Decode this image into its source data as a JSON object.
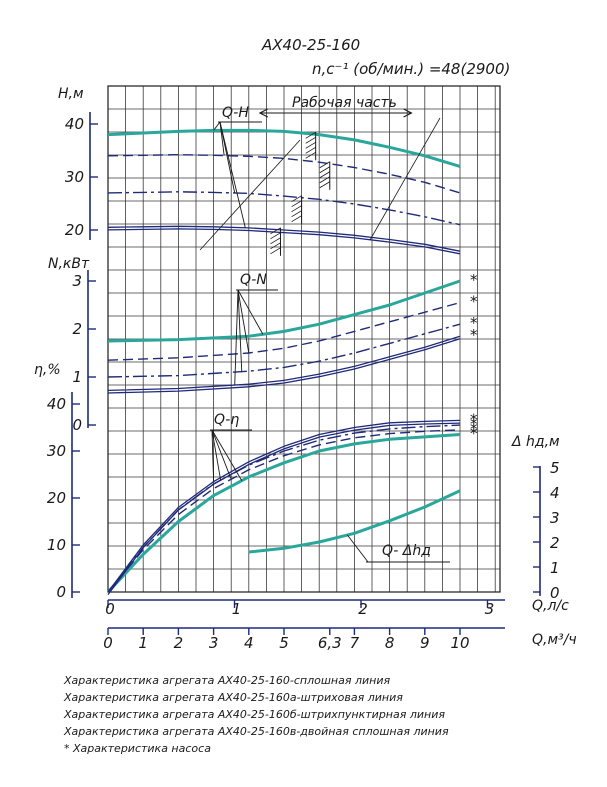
{
  "chart_data": {
    "type": "line",
    "title": "АХ40-25-160",
    "subtitle": "n,c⁻¹ (об/мин.) =48(2900)",
    "colors": {
      "solid": "#2aa79b",
      "others": "#1f2a7a",
      "ink": "#1a1a1a"
    },
    "grid": true,
    "x_axis": {
      "flow_ls": {
        "label": "Q,л/с",
        "ticks": [
          "0",
          "1",
          "2",
          "3"
        ],
        "range": [
          0,
          2.92
        ]
      },
      "flow_m3h": {
        "label": "Q,м³/ч",
        "ticks": [
          "0",
          "1",
          "2",
          "3",
          "4",
          "5",
          "6,3",
          "7",
          "8",
          "9",
          "10"
        ],
        "range": [
          0,
          10.5
        ]
      }
    },
    "panels": {
      "head": {
        "ylabel": "Н,м",
        "yticks": [
          "20",
          "30",
          "40"
        ],
        "ylim": [
          18,
          46
        ],
        "curve_label": "Q-H",
        "work_zone_label": "Рабочая часть",
        "work_zone": [
          1.2,
          2.4
        ],
        "series": [
          {
            "style": "solid",
            "x": [
              0,
              1,
              2,
              3,
              4,
              5,
              6,
              7,
              8,
              9,
              10
            ],
            "y": [
              38,
              38.3,
              38.6,
              38.8,
              38.8,
              38.6,
              38,
              37,
              35.6,
              34,
              32
            ]
          },
          {
            "style": "dash",
            "x": [
              0,
              1,
              2,
              3,
              4,
              5,
              6,
              7,
              8,
              9,
              10
            ],
            "y": [
              34,
              34.1,
              34.2,
              34.1,
              33.9,
              33.5,
              32.8,
              31.8,
              30.5,
              29,
              27
            ]
          },
          {
            "style": "dashdot",
            "x": [
              0,
              1,
              2,
              3,
              4,
              5,
              6,
              7,
              8,
              9,
              10
            ],
            "y": [
              27,
              27.1,
              27.2,
              27.1,
              26.9,
              26.4,
              25.8,
              24.9,
              23.8,
              22.5,
              21
            ]
          },
          {
            "style": "double",
            "x": [
              0,
              1,
              2,
              3,
              4,
              5,
              6,
              7,
              8,
              9,
              10
            ],
            "y": [
              20.5,
              20.6,
              20.7,
              20.6,
              20.4,
              20,
              19.6,
              19,
              18.2,
              17.3,
              16
            ]
          }
        ]
      },
      "power": {
        "ylabel": "N,кВт",
        "yticks": [
          "0",
          "1",
          "2",
          "3"
        ],
        "ylim": [
          0,
          3.3
        ],
        "curve_label": "Q-N",
        "series": [
          {
            "style": "solid",
            "x": [
              0,
              2,
              4,
              5,
              6,
              7,
              8,
              9,
              10
            ],
            "y": [
              1.75,
              1.78,
              1.85,
              1.95,
              2.1,
              2.3,
              2.5,
              2.75,
              3
            ]
          },
          {
            "style": "dash",
            "x": [
              0,
              2,
              4,
              5,
              6,
              7,
              8,
              9,
              10
            ],
            "y": [
              1.35,
              1.4,
              1.5,
              1.6,
              1.75,
              1.95,
              2.15,
              2.35,
              2.55
            ]
          },
          {
            "style": "dashdot",
            "x": [
              0,
              2,
              4,
              5,
              6,
              7,
              8,
              9,
              10
            ],
            "y": [
              1.0,
              1.03,
              1.12,
              1.2,
              1.33,
              1.5,
              1.7,
              1.9,
              2.1
            ]
          },
          {
            "style": "double",
            "x": [
              0,
              2,
              4,
              5,
              6,
              7,
              8,
              9,
              10
            ],
            "y": [
              0.72,
              0.76,
              0.85,
              0.93,
              1.06,
              1.22,
              1.42,
              1.62,
              1.85
            ]
          }
        ],
        "star_label": "*"
      },
      "efficiency": {
        "ylabel": "η,%",
        "yticks": [
          "0",
          "10",
          "20",
          "30",
          "40"
        ],
        "ylim": [
          0,
          40
        ],
        "curve_label": "Q-η",
        "series": [
          {
            "style": "solid",
            "x": [
              0,
              1,
              2,
              3,
              4,
              5,
              6,
              7,
              8,
              9,
              10
            ],
            "y": [
              0,
              8,
              15,
              20.5,
              24.5,
              27.5,
              30,
              31.5,
              32.5,
              33,
              33.5
            ]
          },
          {
            "style": "dash",
            "x": [
              0,
              1,
              2,
              3,
              4,
              5,
              6,
              7,
              8,
              9,
              10
            ],
            "y": [
              0,
              9,
              16.5,
              22,
              26,
              29,
              31.3,
              32.8,
              33.7,
              34.2,
              34.5
            ]
          },
          {
            "style": "dashdot",
            "x": [
              0,
              1,
              2,
              3,
              4,
              5,
              6,
              7,
              8,
              9,
              10
            ],
            "y": [
              0,
              9.5,
              17.5,
              23,
              27,
              30,
              32.3,
              33.8,
              34.7,
              35.2,
              35.5
            ]
          },
          {
            "style": "double",
            "x": [
              0,
              1,
              2,
              3,
              4,
              5,
              6,
              7,
              8,
              9,
              10
            ],
            "y": [
              0,
              10,
              18,
              23.5,
              27.7,
              31,
              33.5,
              35,
              36,
              36.3,
              36.5
            ]
          }
        ]
      },
      "npsh": {
        "ylabel": "Δ hд,м",
        "yticks": [
          "0",
          "1",
          "2",
          "3",
          "4",
          "5"
        ],
        "ylim": [
          0,
          5
        ],
        "curve_label": "Q- Δhд",
        "series": [
          {
            "style": "solid",
            "x": [
              4,
              5,
              6,
              7,
              8,
              9,
              10
            ],
            "y": [
              1.6,
              1.75,
              2.0,
              2.35,
              2.85,
              3.4,
              4.05
            ]
          }
        ]
      }
    },
    "legend": [
      "Характеристика агрегата АХ40-25-160-сплошная линия",
      "Характеристика агрегата АХ40-25-160а-штриховая линия",
      "Характеристика агрегата АХ40-25-160б-штрихпунктирная линия",
      "Характеристика агрегата АХ40-25-160в-двойная сплошная линия",
      "* Характеристика насоса"
    ]
  }
}
